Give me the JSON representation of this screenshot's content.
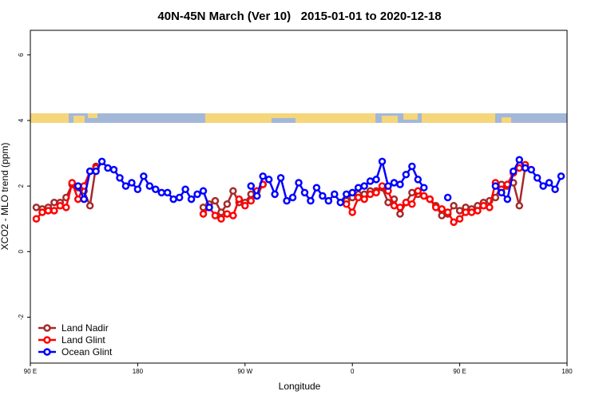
{
  "chart_data": {
    "type": "line",
    "title": "40N-45N March (Ver 10)   2015-01-01 to 2020-12-18",
    "x_label": "Longitude",
    "y_label": "XCO2 - MLO trend (ppm)",
    "xlim": [
      90,
      540
    ],
    "xticks": [
      {
        "value": 90,
        "label": "90 E"
      },
      180,
      {
        "value": 270,
        "label": "90 W"
      },
      {
        "value": 360,
        "label": "0"
      },
      {
        "value": 450,
        "label": "90 E"
      },
      {
        "value": 540,
        "label": "180"
      }
    ],
    "ylim": [
      -3.4,
      6.75
    ],
    "yticks": [
      -2,
      0,
      2,
      4,
      6
    ],
    "legend": "bottom-left",
    "series": [
      {
        "name": "Land Nadir",
        "color": "#a52a2a",
        "x": [
          95,
          100,
          105,
          110,
          115,
          120,
          125,
          130,
          135,
          140,
          145,
          150,
          235,
          240,
          245,
          250,
          255,
          260,
          265,
          270,
          275,
          280,
          285,
          290,
          355,
          360,
          365,
          370,
          375,
          380,
          385,
          390,
          395,
          400,
          405,
          410,
          415,
          420,
          425,
          430,
          435,
          440,
          445,
          450,
          455,
          460,
          465,
          470,
          475,
          480,
          485,
          490,
          495,
          500,
          505
        ],
        "values": [
          1.35,
          1.3,
          1.35,
          1.5,
          1.5,
          1.65,
          2.05,
          1.95,
          1.85,
          1.4,
          2.6,
          null,
          1.35,
          1.45,
          1.55,
          1.2,
          1.45,
          1.85,
          1.5,
          1.5,
          1.75,
          1.7,
          2.05,
          null,
          1.55,
          1.65,
          1.75,
          1.75,
          1.85,
          1.85,
          1.95,
          1.5,
          1.6,
          1.15,
          1.5,
          1.8,
          1.75,
          1.7,
          1.6,
          1.4,
          1.1,
          1.15,
          1.4,
          1.25,
          1.35,
          1.3,
          1.4,
          1.5,
          1.55,
          1.65,
          2.05,
          2.0,
          2.1,
          1.4,
          2.6
        ]
      },
      {
        "name": "Land Glint",
        "color": "#ff0000",
        "x": [
          95,
          100,
          105,
          110,
          115,
          120,
          125,
          130,
          135,
          140,
          145,
          150,
          235,
          240,
          245,
          250,
          255,
          260,
          265,
          270,
          275,
          280,
          285,
          290,
          355,
          360,
          365,
          370,
          375,
          380,
          385,
          390,
          395,
          400,
          405,
          410,
          415,
          420,
          425,
          430,
          435,
          440,
          445,
          450,
          455,
          460,
          465,
          470,
          475,
          480,
          485,
          490,
          495,
          500,
          505
        ],
        "values": [
          1.0,
          1.2,
          1.25,
          1.25,
          1.4,
          1.35,
          2.1,
          1.6,
          2.0,
          2.45,
          2.55,
          null,
          1.15,
          1.35,
          1.1,
          1.0,
          1.15,
          1.1,
          1.6,
          1.4,
          1.55,
          1.85,
          2.05,
          null,
          1.45,
          1.2,
          1.65,
          1.6,
          1.75,
          1.8,
          2.0,
          1.85,
          1.4,
          1.35,
          1.5,
          1.45,
          1.85,
          1.7,
          1.6,
          1.35,
          1.3,
          1.2,
          0.9,
          1.0,
          1.2,
          1.2,
          1.25,
          1.4,
          1.35,
          2.1,
          1.9,
          2.05,
          2.4,
          2.55,
          2.65
        ]
      },
      {
        "name": "Ocean Glint",
        "color": "#0000ff",
        "x": [
          130,
          135,
          140,
          145,
          150,
          155,
          160,
          165,
          170,
          175,
          180,
          185,
          190,
          195,
          200,
          205,
          210,
          215,
          220,
          225,
          230,
          235,
          240,
          245,
          275,
          280,
          285,
          290,
          295,
          300,
          305,
          310,
          315,
          320,
          325,
          330,
          335,
          340,
          345,
          350,
          355,
          360,
          365,
          370,
          375,
          380,
          385,
          390,
          395,
          400,
          405,
          410,
          415,
          420,
          425,
          440,
          445,
          480,
          485,
          490,
          495,
          500,
          505,
          510,
          515,
          520,
          525,
          530,
          535
        ],
        "values": [
          2.0,
          1.6,
          2.45,
          2.45,
          2.75,
          2.55,
          2.5,
          2.25,
          2.0,
          2.1,
          1.9,
          2.3,
          2.0,
          1.9,
          1.8,
          1.8,
          1.6,
          1.65,
          1.9,
          1.6,
          1.75,
          1.85,
          1.35,
          null,
          2.0,
          1.7,
          2.3,
          2.2,
          1.75,
          2.25,
          1.55,
          1.65,
          2.1,
          1.8,
          1.55,
          1.95,
          1.7,
          1.55,
          1.75,
          1.5,
          1.75,
          1.8,
          1.95,
          2.0,
          2.15,
          2.2,
          2.75,
          2.0,
          2.1,
          2.05,
          2.35,
          2.6,
          2.2,
          1.95,
          null,
          1.65,
          null,
          2.0,
          1.8,
          1.6,
          2.45,
          2.8,
          2.55,
          2.5,
          2.25,
          2.0,
          2.1,
          1.9,
          2.3
        ]
      }
    ]
  }
}
